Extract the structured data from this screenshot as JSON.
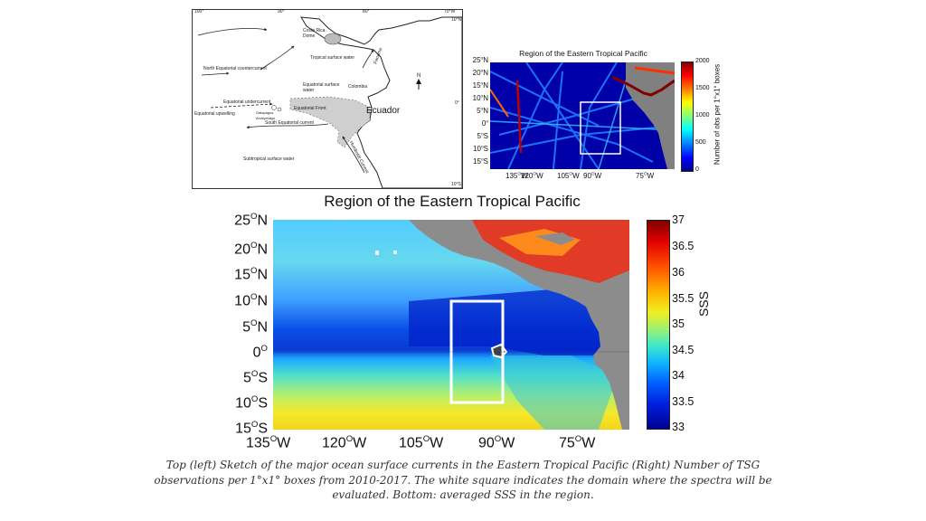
{
  "sketch": {
    "lon_ticks": [
      "100°",
      "90°",
      "80°",
      "70°W"
    ],
    "lat_ticks": [
      "10°N",
      "0°",
      "10°S"
    ],
    "labels": {
      "costa_rica_dome": "Costa Rica\nDome",
      "tropical_surface_water": "Tropical surface water",
      "north_equatorial_countercurrent": "North Equatorial countercurrent",
      "colombia": "Colombia",
      "panama": "Panama",
      "equatorial_surface_water": "Equatorial surface\nwater",
      "equatorial_undercurrent": "Equatorial undercurrent",
      "equatorial_upwelling": "Equatorial upwelling",
      "galapagos": "Galapagos\nArchipelago",
      "equatorial_front": "Equatorial Front",
      "south_equatorial_current": "South Equatorial current",
      "ecuador": "Ecuador",
      "humboldt": "Humboldt Current",
      "subtropical_surface_water": "Subtropical surface water",
      "north": "N"
    }
  },
  "obs_map": {
    "title": "Region of the Eastern Tropical Pacific",
    "colorbar_label": "Number of obs per 1°x1° boxes",
    "colorbar_ticks": [
      "2000",
      "1500",
      "1000",
      "500",
      "0"
    ],
    "lat_ticks": [
      "25",
      "20",
      "15",
      "10",
      "5",
      "0",
      "5",
      "10",
      "15"
    ],
    "lat_hemi": [
      "N",
      "N",
      "N",
      "N",
      "N",
      "",
      "S",
      "S",
      "S"
    ],
    "lon_ticks": [
      "135",
      "120",
      "105",
      "90",
      "75"
    ],
    "colors": {
      "low": "#00008f",
      "high": "#800000"
    }
  },
  "sss_map": {
    "title": "Region of the Eastern Tropical Pacific",
    "colorbar_label": "SSS",
    "colorbar_ticks": [
      "37",
      "36.5",
      "36",
      "35.5",
      "35",
      "34.5",
      "34",
      "33.5",
      "33"
    ],
    "lat_ticks": [
      "25",
      "20",
      "15",
      "10",
      "5",
      "0",
      "5",
      "10",
      "15"
    ],
    "lat_hemi": [
      "N",
      "N",
      "N",
      "N",
      "N",
      "",
      "S",
      "S",
      "S"
    ],
    "lon_ticks": [
      "135",
      "120",
      "105",
      "90",
      "75"
    ],
    "colorbar_range": [
      33,
      37
    ],
    "colors": {
      "land": "#8c8c8c",
      "box": "#ffffff"
    }
  },
  "caption": "Top (left) Sketch of the major ocean surface currents in the Eastern Tropical Pacific (Right) Number of TSG observations per 1°x1° boxes from 2010-2017. The white square indicates the domain where the spectra will be evaluated. Bottom: averaged SSS in the region."
}
